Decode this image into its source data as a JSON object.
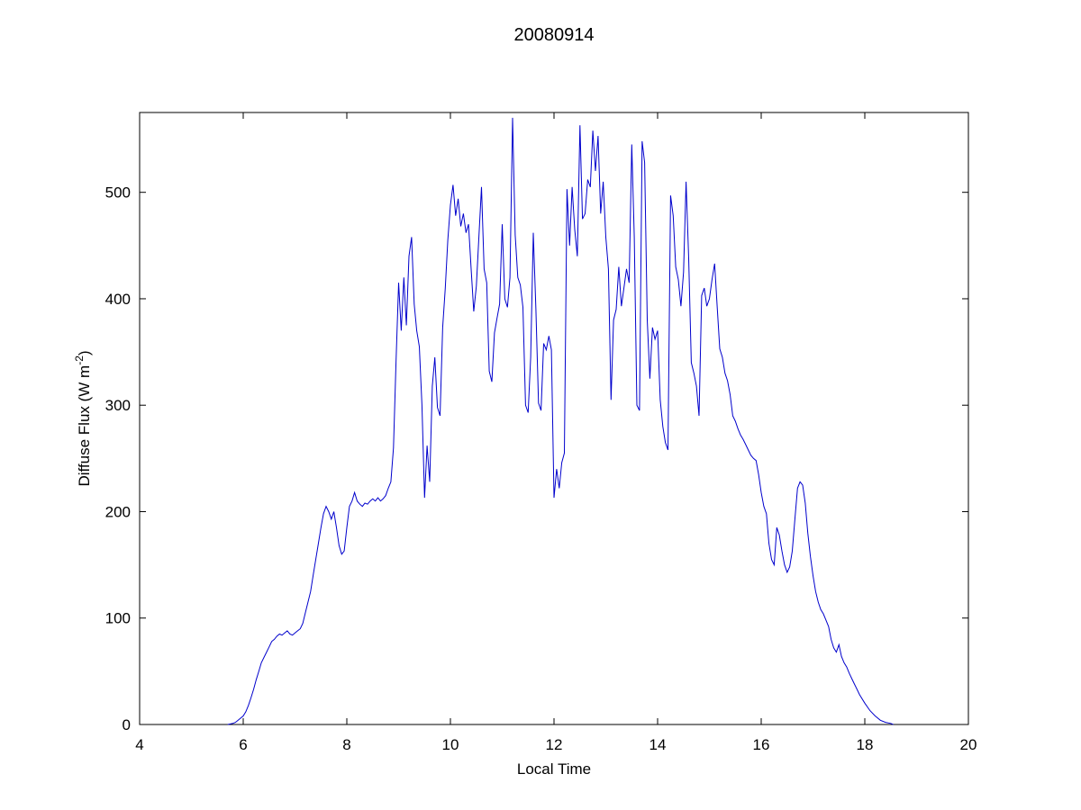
{
  "style": {
    "background_color": "#ffffff",
    "axis_color": "#000000",
    "line_color": "#0000CC"
  },
  "chart_data": {
    "type": "line",
    "title": "20080914",
    "xlabel": "Local Time",
    "ylabel": "Diffuse Flux (W m⁻²)",
    "ylabel_parts": {
      "base": "Diffuse Flux (W m",
      "sup": "-2",
      "end": ")"
    },
    "xlim": [
      4,
      20
    ],
    "ylim": [
      0,
      575
    ],
    "xticks": [
      4,
      6,
      8,
      10,
      12,
      14,
      16,
      18,
      20
    ],
    "yticks": [
      0,
      100,
      200,
      300,
      400,
      500
    ],
    "grid": false,
    "legend": null,
    "series": [
      {
        "name": "diffuse-flux",
        "points": [
          [
            5.7,
            0
          ],
          [
            5.8,
            1
          ],
          [
            5.85,
            2
          ],
          [
            5.9,
            4
          ],
          [
            6.0,
            8
          ],
          [
            6.05,
            12
          ],
          [
            6.1,
            18
          ],
          [
            6.15,
            25
          ],
          [
            6.2,
            33
          ],
          [
            6.25,
            42
          ],
          [
            6.3,
            50
          ],
          [
            6.35,
            58
          ],
          [
            6.4,
            63
          ],
          [
            6.45,
            68
          ],
          [
            6.5,
            73
          ],
          [
            6.55,
            78
          ],
          [
            6.6,
            80
          ],
          [
            6.65,
            83
          ],
          [
            6.7,
            85
          ],
          [
            6.75,
            84
          ],
          [
            6.8,
            86
          ],
          [
            6.85,
            88
          ],
          [
            6.9,
            85
          ],
          [
            6.95,
            84
          ],
          [
            7.0,
            86
          ],
          [
            7.05,
            88
          ],
          [
            7.1,
            90
          ],
          [
            7.15,
            95
          ],
          [
            7.2,
            105
          ],
          [
            7.25,
            115
          ],
          [
            7.3,
            125
          ],
          [
            7.35,
            140
          ],
          [
            7.4,
            155
          ],
          [
            7.45,
            170
          ],
          [
            7.5,
            185
          ],
          [
            7.55,
            198
          ],
          [
            7.6,
            205
          ],
          [
            7.65,
            200
          ],
          [
            7.7,
            193
          ],
          [
            7.75,
            200
          ],
          [
            7.8,
            185
          ],
          [
            7.85,
            168
          ],
          [
            7.9,
            160
          ],
          [
            7.95,
            163
          ],
          [
            8.0,
            185
          ],
          [
            8.05,
            205
          ],
          [
            8.1,
            210
          ],
          [
            8.15,
            218
          ],
          [
            8.2,
            210
          ],
          [
            8.25,
            207
          ],
          [
            8.3,
            205
          ],
          [
            8.35,
            208
          ],
          [
            8.4,
            207
          ],
          [
            8.45,
            210
          ],
          [
            8.5,
            212
          ],
          [
            8.55,
            210
          ],
          [
            8.6,
            213
          ],
          [
            8.65,
            210
          ],
          [
            8.7,
            212
          ],
          [
            8.75,
            215
          ],
          [
            8.8,
            222
          ],
          [
            8.85,
            228
          ],
          [
            8.9,
            260
          ],
          [
            8.95,
            340
          ],
          [
            9.0,
            415
          ],
          [
            9.05,
            370
          ],
          [
            9.1,
            420
          ],
          [
            9.15,
            375
          ],
          [
            9.2,
            440
          ],
          [
            9.25,
            458
          ],
          [
            9.3,
            395
          ],
          [
            9.35,
            370
          ],
          [
            9.4,
            355
          ],
          [
            9.45,
            300
          ],
          [
            9.5,
            213
          ],
          [
            9.55,
            262
          ],
          [
            9.6,
            228
          ],
          [
            9.65,
            318
          ],
          [
            9.7,
            345
          ],
          [
            9.75,
            298
          ],
          [
            9.8,
            290
          ],
          [
            9.85,
            373
          ],
          [
            9.9,
            410
          ],
          [
            9.95,
            455
          ],
          [
            10.0,
            488
          ],
          [
            10.05,
            507
          ],
          [
            10.1,
            478
          ],
          [
            10.15,
            494
          ],
          [
            10.2,
            468
          ],
          [
            10.25,
            480
          ],
          [
            10.3,
            462
          ],
          [
            10.35,
            470
          ],
          [
            10.4,
            428
          ],
          [
            10.45,
            388
          ],
          [
            10.5,
            412
          ],
          [
            10.55,
            458
          ],
          [
            10.6,
            505
          ],
          [
            10.65,
            428
          ],
          [
            10.7,
            415
          ],
          [
            10.75,
            332
          ],
          [
            10.8,
            322
          ],
          [
            10.85,
            368
          ],
          [
            10.9,
            382
          ],
          [
            10.95,
            395
          ],
          [
            11.0,
            470
          ],
          [
            11.05,
            400
          ],
          [
            11.1,
            392
          ],
          [
            11.15,
            420
          ],
          [
            11.2,
            570
          ],
          [
            11.25,
            460
          ],
          [
            11.3,
            420
          ],
          [
            11.35,
            413
          ],
          [
            11.4,
            392
          ],
          [
            11.45,
            300
          ],
          [
            11.5,
            293
          ],
          [
            11.55,
            345
          ],
          [
            11.6,
            462
          ],
          [
            11.65,
            390
          ],
          [
            11.7,
            302
          ],
          [
            11.75,
            295
          ],
          [
            11.8,
            358
          ],
          [
            11.85,
            352
          ],
          [
            11.9,
            365
          ],
          [
            11.95,
            352
          ],
          [
            12.0,
            213
          ],
          [
            12.05,
            240
          ],
          [
            12.1,
            222
          ],
          [
            12.15,
            246
          ],
          [
            12.2,
            255
          ],
          [
            12.25,
            503
          ],
          [
            12.3,
            450
          ],
          [
            12.35,
            505
          ],
          [
            12.4,
            465
          ],
          [
            12.45,
            440
          ],
          [
            12.5,
            563
          ],
          [
            12.55,
            475
          ],
          [
            12.6,
            480
          ],
          [
            12.65,
            512
          ],
          [
            12.7,
            505
          ],
          [
            12.75,
            558
          ],
          [
            12.8,
            520
          ],
          [
            12.85,
            553
          ],
          [
            12.9,
            480
          ],
          [
            12.95,
            510
          ],
          [
            13.0,
            458
          ],
          [
            13.05,
            428
          ],
          [
            13.1,
            305
          ],
          [
            13.15,
            380
          ],
          [
            13.2,
            390
          ],
          [
            13.25,
            430
          ],
          [
            13.3,
            393
          ],
          [
            13.35,
            410
          ],
          [
            13.4,
            428
          ],
          [
            13.45,
            415
          ],
          [
            13.5,
            545
          ],
          [
            13.55,
            458
          ],
          [
            13.6,
            300
          ],
          [
            13.65,
            295
          ],
          [
            13.7,
            548
          ],
          [
            13.75,
            528
          ],
          [
            13.8,
            380
          ],
          [
            13.85,
            325
          ],
          [
            13.9,
            373
          ],
          [
            13.95,
            362
          ],
          [
            14.0,
            370
          ],
          [
            14.05,
            305
          ],
          [
            14.1,
            280
          ],
          [
            14.15,
            265
          ],
          [
            14.2,
            258
          ],
          [
            14.25,
            497
          ],
          [
            14.3,
            478
          ],
          [
            14.35,
            430
          ],
          [
            14.4,
            418
          ],
          [
            14.45,
            393
          ],
          [
            14.5,
            425
          ],
          [
            14.55,
            510
          ],
          [
            14.6,
            438
          ],
          [
            14.65,
            340
          ],
          [
            14.7,
            330
          ],
          [
            14.75,
            318
          ],
          [
            14.8,
            290
          ],
          [
            14.85,
            403
          ],
          [
            14.9,
            410
          ],
          [
            14.95,
            393
          ],
          [
            15.0,
            400
          ],
          [
            15.05,
            418
          ],
          [
            15.1,
            433
          ],
          [
            15.15,
            393
          ],
          [
            15.2,
            353
          ],
          [
            15.25,
            345
          ],
          [
            15.3,
            330
          ],
          [
            15.35,
            323
          ],
          [
            15.4,
            310
          ],
          [
            15.45,
            290
          ],
          [
            15.5,
            285
          ],
          [
            15.55,
            278
          ],
          [
            15.6,
            272
          ],
          [
            15.65,
            268
          ],
          [
            15.7,
            263
          ],
          [
            15.75,
            258
          ],
          [
            15.8,
            253
          ],
          [
            15.85,
            250
          ],
          [
            15.9,
            248
          ],
          [
            15.95,
            235
          ],
          [
            16.0,
            218
          ],
          [
            16.05,
            205
          ],
          [
            16.1,
            198
          ],
          [
            16.15,
            170
          ],
          [
            16.2,
            155
          ],
          [
            16.25,
            150
          ],
          [
            16.3,
            185
          ],
          [
            16.35,
            178
          ],
          [
            16.4,
            163
          ],
          [
            16.45,
            150
          ],
          [
            16.5,
            143
          ],
          [
            16.55,
            148
          ],
          [
            16.6,
            163
          ],
          [
            16.65,
            193
          ],
          [
            16.7,
            222
          ],
          [
            16.75,
            228
          ],
          [
            16.8,
            225
          ],
          [
            16.85,
            208
          ],
          [
            16.9,
            180
          ],
          [
            16.95,
            158
          ],
          [
            17.0,
            140
          ],
          [
            17.05,
            125
          ],
          [
            17.1,
            115
          ],
          [
            17.15,
            108
          ],
          [
            17.2,
            104
          ],
          [
            17.25,
            98
          ],
          [
            17.3,
            92
          ],
          [
            17.35,
            80
          ],
          [
            17.4,
            72
          ],
          [
            17.45,
            68
          ],
          [
            17.5,
            75
          ],
          [
            17.55,
            64
          ],
          [
            17.6,
            58
          ],
          [
            17.65,
            54
          ],
          [
            17.7,
            48
          ],
          [
            17.75,
            43
          ],
          [
            17.8,
            38
          ],
          [
            17.85,
            33
          ],
          [
            17.9,
            28
          ],
          [
            18.0,
            20
          ],
          [
            18.1,
            13
          ],
          [
            18.2,
            8
          ],
          [
            18.3,
            4
          ],
          [
            18.4,
            2
          ],
          [
            18.5,
            1
          ],
          [
            18.55,
            0
          ]
        ]
      }
    ]
  }
}
